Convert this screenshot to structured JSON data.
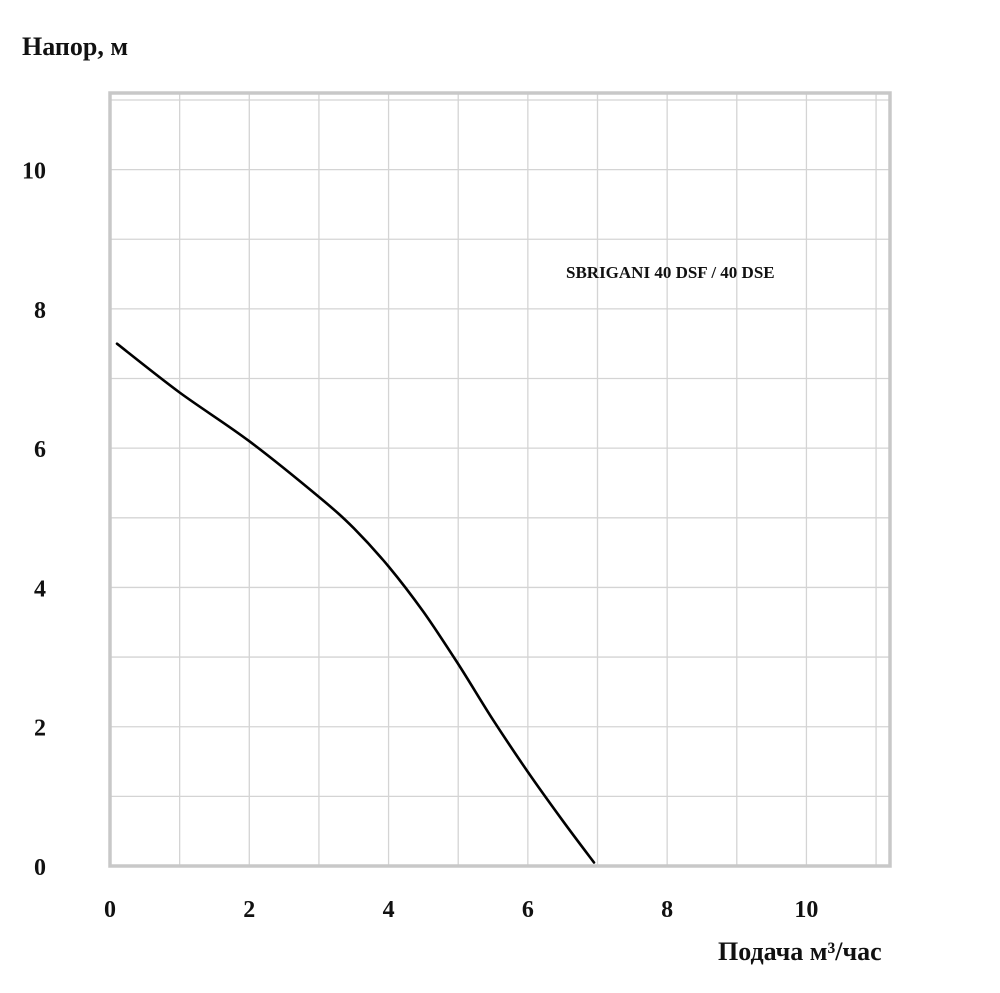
{
  "chart_data": {
    "type": "line",
    "title": "",
    "ylabel": "Напор, м",
    "xlabel": "Подача м³/час",
    "annotation": "SBRIGANI 40 DSF / 40 DSE",
    "xlim": [
      0,
      11.2
    ],
    "ylim": [
      0,
      11.1
    ],
    "x_ticks": [
      0,
      2,
      4,
      6,
      8,
      10
    ],
    "x_tick_labels": [
      "0",
      "2",
      "4",
      "6",
      "8",
      "10"
    ],
    "y_ticks": [
      0,
      2,
      4,
      6,
      8,
      10
    ],
    "y_tick_labels": [
      "0",
      "2",
      "4",
      "6",
      "8",
      "10"
    ],
    "grid": true,
    "x_grid_step": 1,
    "y_grid_step": 1,
    "series": [
      {
        "values_x": [
          0.1,
          1,
          2,
          3,
          3.5,
          4,
          4.5,
          5,
          5.5,
          6,
          6.5,
          6.95
        ],
        "values_y": [
          7.5,
          6.8,
          6.1,
          5.3,
          4.85,
          4.3,
          3.65,
          2.9,
          2.1,
          1.35,
          0.65,
          0.05
        ],
        "color": "#000000"
      }
    ]
  }
}
